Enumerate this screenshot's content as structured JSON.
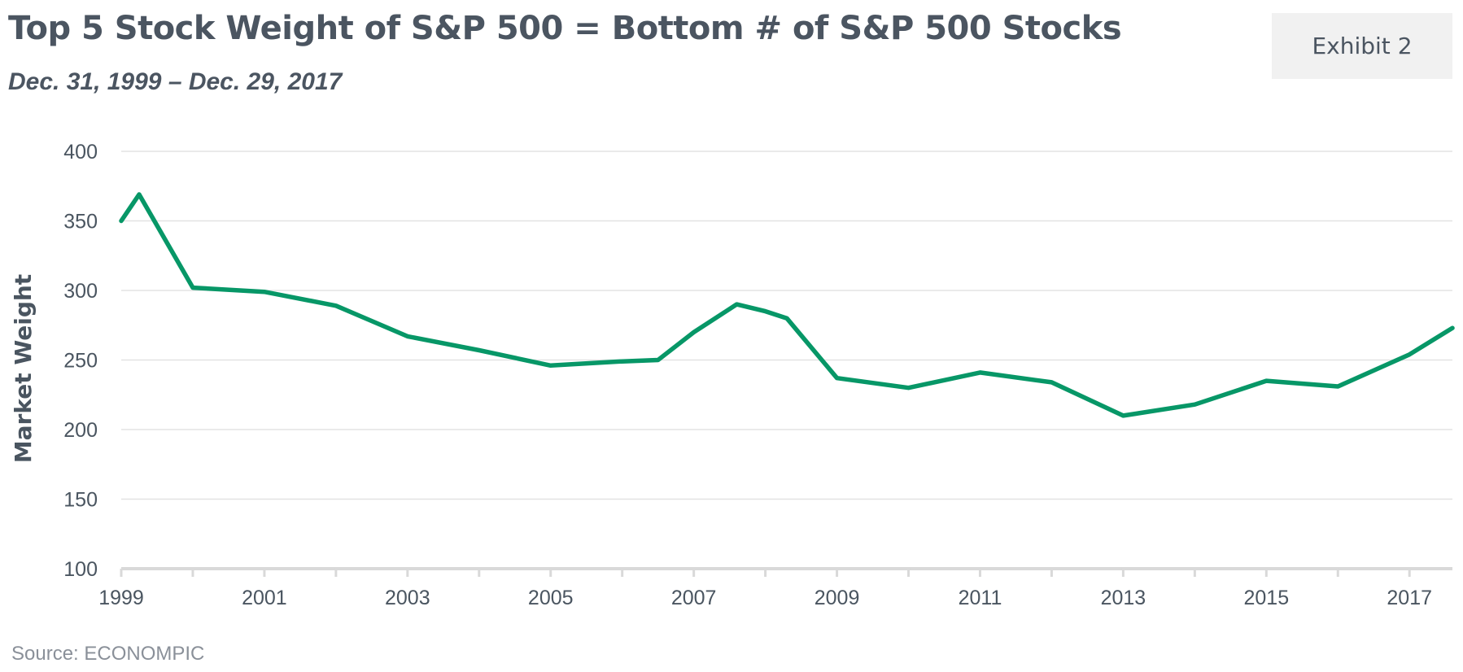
{
  "header": {
    "title": "Top 5 Stock Weight of S&P 500 = Bottom # of S&P 500 Stocks",
    "subtitle": "Dec. 31, 1999 – Dec. 29, 2017",
    "exhibit_label": "Exhibit 2"
  },
  "footer": {
    "source": "Source: ECONOMPIC"
  },
  "colors": {
    "line": "#079767",
    "grid": "#e3e3e3",
    "axis": "#d9d9d9",
    "text": "#4a5560"
  },
  "chart_data": {
    "type": "line",
    "title": "Top 5 Stock Weight of S&P 500 = Bottom # of S&P 500 Stocks",
    "xlabel": "",
    "ylabel": "Market Weight",
    "ylim": [
      100,
      400
    ],
    "yticks": [
      100,
      150,
      200,
      250,
      300,
      350,
      400
    ],
    "xlim": [
      1999,
      2017.6
    ],
    "xticks": [
      1999,
      2001,
      2003,
      2005,
      2007,
      2009,
      2011,
      2013,
      2015,
      2017
    ],
    "grid": true,
    "series": [
      {
        "name": "Bottom # of S&P 500 Stocks",
        "x": [
          1999.0,
          1999.25,
          2000.0,
          2001.0,
          2002.0,
          2003.0,
          2004.0,
          2005.0,
          2006.0,
          2006.5,
          2007.0,
          2007.6,
          2008.0,
          2008.3,
          2009.0,
          2010.0,
          2011.0,
          2012.0,
          2013.0,
          2014.0,
          2015.0,
          2016.0,
          2017.0,
          2017.6
        ],
        "values": [
          350,
          369,
          302,
          299,
          289,
          267,
          257,
          246,
          249,
          250,
          270,
          290,
          285,
          280,
          237,
          230,
          241,
          234,
          210,
          218,
          235,
          231,
          254,
          273
        ]
      }
    ]
  }
}
